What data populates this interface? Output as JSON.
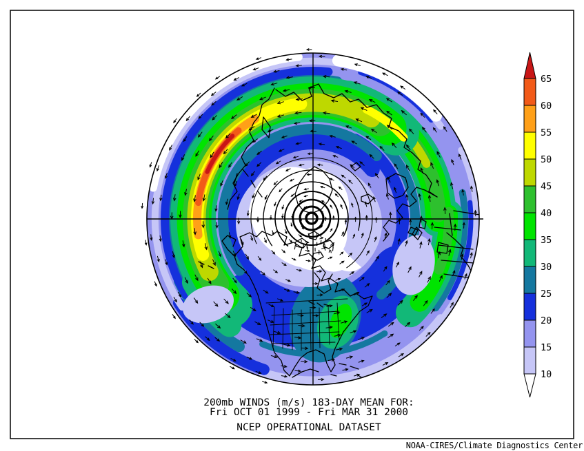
{
  "window": {
    "background": "#ffffff",
    "frame_border_color": "#000000"
  },
  "titles": {
    "line1": "200mb WINDS (m/s)   183-DAY MEAN FOR:",
    "line2": "Fri OCT 01 1999 - Fri MAR 31 2000",
    "line3": "NCEP OPERATIONAL DATASET"
  },
  "attribution": "NOAA-CIRES/Climate Diagnostics Center",
  "chart_data": {
    "type": "heatmap",
    "subtype": "polar-stereographic filled-contour map with wind-vector overlay",
    "title": "200mb WINDS (m/s)  183-DAY MEAN FOR: Fri OCT 01 1999 - Fri MAR 31 2000",
    "dataset_note": "NCEP OPERATIONAL DATASET",
    "variable": "200 mb wind speed",
    "units": "m/s",
    "statistic": "183-day mean",
    "period_start": "Fri OCT 01 1999",
    "period_end": "Fri MAR 31 2000",
    "region": "Northern Hemisphere, pole at center, North America at bottom",
    "legend_position": "right",
    "colorbar": {
      "labels_top_to_bottom": [
        "65",
        "60",
        "55",
        "50",
        "45",
        "40",
        "35",
        "30",
        "25",
        "20",
        "15",
        "10"
      ],
      "segments_top_to_bottom": [
        {
          "range": "> 65",
          "color": "#c81616",
          "shape": "up-arrow"
        },
        {
          "range": "60-65",
          "color": "#f25a18"
        },
        {
          "range": "55-60",
          "color": "#ffa018"
        },
        {
          "range": "50-55",
          "color": "#ffff00"
        },
        {
          "range": "45-50",
          "color": "#bed800"
        },
        {
          "range": "40-45",
          "color": "#2ec02e"
        },
        {
          "range": "35-40",
          "color": "#00e400"
        },
        {
          "range": "30-35",
          "color": "#12b878"
        },
        {
          "range": "25-30",
          "color": "#1478a0"
        },
        {
          "range": "20-25",
          "color": "#1530dc"
        },
        {
          "range": "15-20",
          "color": "#9494ef"
        },
        {
          "range": "10-15",
          "color": "#c6c6f7"
        },
        {
          "range": "< 10",
          "color": "#ffffff",
          "shape": "down-arrow"
        }
      ]
    },
    "palette": {
      "lt10": "#ffffff",
      "10-15": "#c6c6f7",
      "15-20": "#9494ef",
      "20-25": "#1530dc",
      "25-30": "#1478a0",
      "30-35": "#12b878",
      "35-40": "#00e400",
      "40-45": "#2ec02e",
      "45-50": "#bed800",
      "50-55": "#ffff00",
      "55-60": "#ffa018",
      "60-65": "#f25a18",
      "gt65": "#c81616"
    },
    "vector_overlay": {
      "symbol": "arrows",
      "color": "#000000",
      "flow": "westerly flow, counterclockwise around the pole"
    },
    "map_line_color": "#000000",
    "features": [
      {
        "name": "Pacific jet maximum",
        "approx_value": "> 65 m/s",
        "location": "upper-left sector (western North Pacific near Japan)"
      },
      {
        "name": "Middle East / North Africa jet",
        "approx_value": "40-55 m/s",
        "location": "right sector"
      },
      {
        "name": "polar wind minimum",
        "approx_value": "< 10 m/s",
        "location": "map center"
      },
      {
        "name": "southeast United States local maximum",
        "approx_value": "35-40 m/s",
        "location": "bottom center-right"
      }
    ]
  }
}
